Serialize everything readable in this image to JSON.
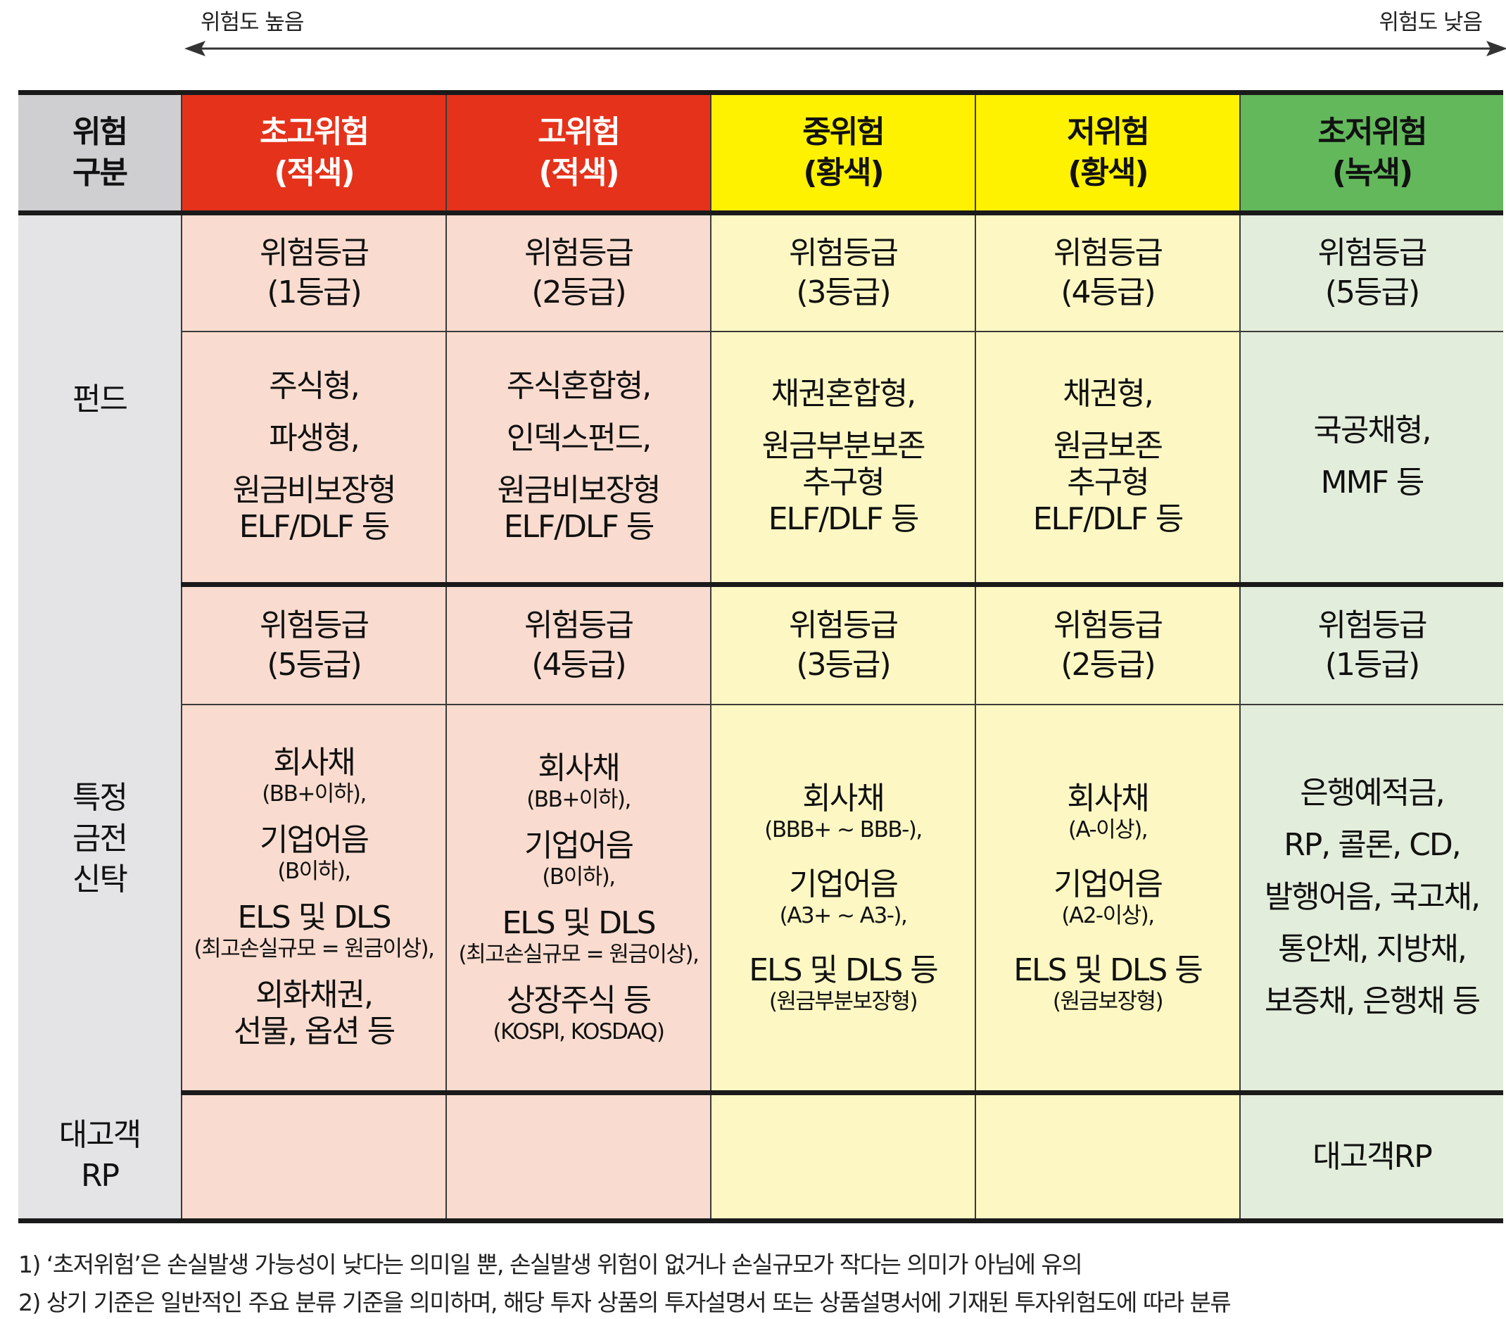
{
  "scale": {
    "high": "위험도 높음",
    "low": "위험도 낮음"
  },
  "header": {
    "category": [
      "위험",
      "구분"
    ],
    "columns": [
      {
        "line1": "초고위험",
        "line2": "(적색)",
        "color": "#e5321b"
      },
      {
        "line1": "고위험",
        "line2": "(적색)",
        "color": "#e5321b"
      },
      {
        "line1": "중위험",
        "line2": "(황색)",
        "color": "#fff200"
      },
      {
        "line1": "저위험",
        "line2": "(황색)",
        "color": "#fff200"
      },
      {
        "line1": "초저위험",
        "line2": "(녹색)",
        "color": "#63b85c"
      }
    ]
  },
  "fund": {
    "label": "펀드",
    "grades": [
      {
        "l1": "위험등급",
        "l2": "(1등급)"
      },
      {
        "l1": "위험등급",
        "l2": "(2등급)"
      },
      {
        "l1": "위험등급",
        "l2": "(3등급)"
      },
      {
        "l1": "위험등급",
        "l2": "(4등급)"
      },
      {
        "l1": "위험등급",
        "l2": "(5등급)"
      }
    ],
    "products": [
      [
        "주식형,",
        "파생형,",
        "원금비보장형",
        "ELF/DLF 등"
      ],
      [
        "주식혼합형,",
        "인덱스펀드,",
        "원금비보장형",
        "ELF/DLF 등"
      ],
      [
        "채권혼합형,",
        "원금부분보존",
        "추구형",
        "ELF/DLF 등"
      ],
      [
        "채권형,",
        "원금보존",
        "추구형",
        "ELF/DLF 등"
      ],
      [
        "국공채형,",
        "MMF 등"
      ]
    ]
  },
  "trust": {
    "label": [
      "특정",
      "금전",
      "신탁"
    ],
    "grades": [
      {
        "l1": "위험등급",
        "l2": "(5등급)"
      },
      {
        "l1": "위험등급",
        "l2": "(4등급)"
      },
      {
        "l1": "위험등급",
        "l2": "(3등급)"
      },
      {
        "l1": "위험등급",
        "l2": "(2등급)"
      },
      {
        "l1": "위험등급",
        "l2": "(1등급)"
      }
    ],
    "c1": [
      "회사채",
      "(BB+이하),",
      "기업어음",
      "(B이하),",
      "ELS 및 DLS",
      "(최고손실규모 = 원금이상),",
      "외화채권,",
      "선물, 옵션 등"
    ],
    "c2": [
      "회사채",
      "(BB+이하),",
      "기업어음",
      "(B이하),",
      "ELS 및 DLS",
      "(최고손실규모 = 원금이상),",
      "상장주식 등",
      "(KOSPI, KOSDAQ)"
    ],
    "c3": [
      "회사채",
      "(BBB+ ~ BBB-),",
      "기업어음",
      "(A3+ ~ A3-),",
      "ELS 및 DLS 등",
      "(원금부분보장형)"
    ],
    "c4": [
      "회사채",
      "(A-이상),",
      "기업어음",
      "(A2-이상),",
      "ELS 및 DLS 등",
      "(원금보장형)"
    ],
    "c5": [
      "은행예적금,",
      "RP, 콜론, CD,",
      "발행어음, 국고채,",
      "통안채, 지방채,",
      "보증채, 은행채 등"
    ]
  },
  "rp": {
    "label": [
      "대고객",
      "RP"
    ],
    "c5": "대고객RP"
  },
  "notes": [
    "1) ‘초저위험’은 손실발생 가능성이 낮다는 의미일 뿐, 손실발생 위험이 없거나 손실규모가 작다는 의미가 아님에 유의",
    "2) 상기 기준은 일반적인 주요 분류 기준을 의미하며, 해당 투자 상품의 투자설명서 또는 상품설명서에 기재된 투자위험도에 따라 분류"
  ]
}
